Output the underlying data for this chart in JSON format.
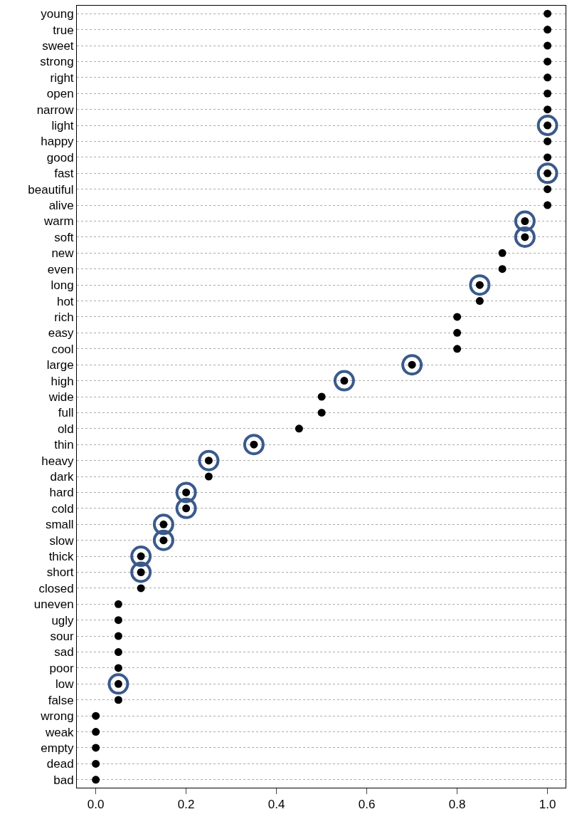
{
  "chart_data": {
    "type": "scatter",
    "orientation": "horizontal",
    "categories": [
      "young",
      "true",
      "sweet",
      "strong",
      "right",
      "open",
      "narrow",
      "light",
      "happy",
      "good",
      "fast",
      "beautiful",
      "alive",
      "warm",
      "soft",
      "new",
      "even",
      "long",
      "hot",
      "rich",
      "easy",
      "cool",
      "large",
      "high",
      "wide",
      "full",
      "old",
      "thin",
      "heavy",
      "dark",
      "hard",
      "cold",
      "small",
      "slow",
      "thick",
      "short",
      "closed",
      "uneven",
      "ugly",
      "sour",
      "sad",
      "poor",
      "low",
      "false",
      "wrong",
      "weak",
      "empty",
      "dead",
      "bad"
    ],
    "series": [
      {
        "color": "#000000",
        "marker": "circle",
        "values": [
          1,
          1,
          1,
          1,
          1,
          1,
          1,
          1,
          1,
          1,
          1,
          1,
          1,
          0.95,
          0.95,
          0.9,
          0.9,
          0.85,
          0.85,
          0.8,
          0.8,
          0.8,
          0.7,
          0.55,
          0.5,
          0.5,
          0.45,
          0.35,
          0.25,
          0.25,
          0.2,
          0.2,
          0.15,
          0.15,
          0.1,
          0.1,
          0.1,
          0.05,
          0.05,
          0.05,
          0.05,
          0.05,
          0.05,
          0.05,
          0,
          0,
          0,
          0,
          0
        ]
      },
      {
        "color": "#3a5a8c",
        "marker": "circle",
        "values": [
          null,
          null,
          null,
          null,
          null,
          null,
          null,
          1,
          null,
          null,
          1,
          null,
          null,
          0.95,
          0.95,
          null,
          null,
          0.85,
          null,
          null,
          null,
          null,
          0.7,
          0.55,
          null,
          null,
          null,
          0.35,
          0.25,
          null,
          0.2,
          0.2,
          0.15,
          0.15,
          0.1,
          0.1,
          null,
          null,
          null,
          null,
          null,
          null,
          0.05,
          null,
          null,
          null,
          null,
          null,
          null
        ]
      }
    ],
    "xlim": [
      -0.042,
      1.04
    ],
    "xticks": [
      {
        "value": 0,
        "label": "0.0"
      },
      0.2,
      0.4,
      0.6,
      0.8,
      {
        "value": 1,
        "label": "1.0"
      }
    ],
    "grid": "y"
  }
}
